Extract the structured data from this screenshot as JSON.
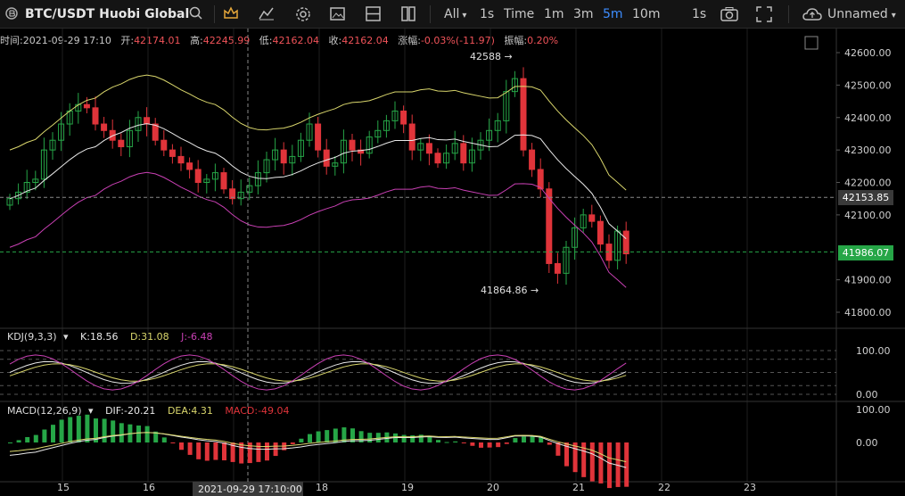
{
  "toolbar": {
    "title": "BTC/USDT Huobi Global",
    "search_icon": "search-icon",
    "crown_icon": "crown-icon",
    "indicators_icon": "indicators-icon",
    "settings_icon": "gear-icon",
    "screenshot_icon": "image-icon",
    "layout_icon": "layout-icon",
    "range_all": "All",
    "intervals": [
      "1s",
      "Time",
      "1m",
      "3m",
      "5m",
      "10m"
    ],
    "active_interval": "5m",
    "replay": "1s",
    "camera_icon": "camera-icon",
    "fullscreen_icon": "fullscreen-icon",
    "cloud_label": "Unnamed"
  },
  "ohlc": {
    "time_label": "时间:",
    "time_value": "2021-09-29 17:10",
    "open_label": "开:",
    "open_value": "42174.01",
    "high_label": "高:",
    "high_value": "42245.99",
    "low_label": "低:",
    "low_value": "42162.04",
    "close_label": "收:",
    "close_value": "42162.04",
    "change_label": "涨幅:",
    "change_value": "-0.03%(-11.97)",
    "amp_label": "振幅:",
    "amp_value": "0.20%"
  },
  "main_axis": [
    "42600.00",
    "42500.00",
    "42400.00",
    "42300.00",
    "42200.00",
    "42100.00",
    "41900.00",
    "41800.00"
  ],
  "crosshair_price": "42153.85",
  "last_price": "41986.07",
  "high_mark": "42588 →",
  "low_mark": "41864.86 →",
  "kdj": {
    "name": "KDJ(9,3,3)",
    "k": "K:18.56",
    "d": "D:31.08",
    "j": "J:-6.48",
    "axis": [
      "100.00",
      "0.00"
    ]
  },
  "macd": {
    "name": "MACD(12,26,9)",
    "dif": "DIF:-20.21",
    "dea": "DEA:4.31",
    "macd": "MACD:-49.04",
    "axis": [
      "100.00",
      "0.00"
    ]
  },
  "x_axis": {
    "ticks": [
      "15",
      "16",
      "18",
      "19",
      "20",
      "21",
      "22",
      "23"
    ],
    "cursor_label": "2021-09-29 17:10:00"
  },
  "colors": {
    "up": "#26a647",
    "down": "#e0343a",
    "boll_up": "#d9d66c",
    "boll_mid": "#e8e8e8",
    "boll_low": "#c940b4"
  }
}
